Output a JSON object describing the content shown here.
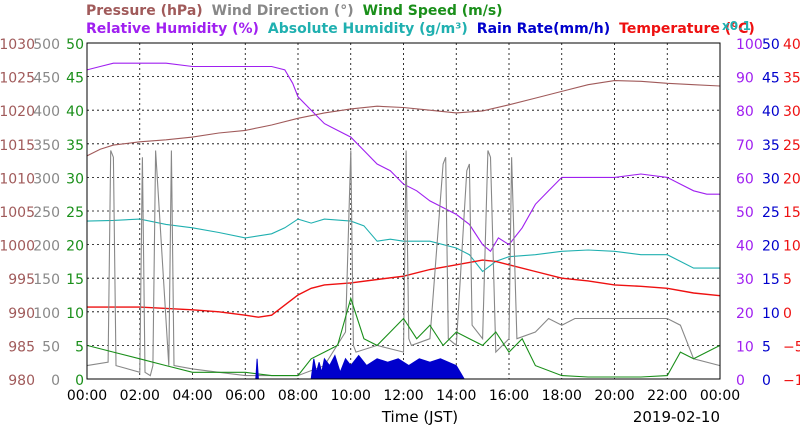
{
  "chart_data": {
    "type": "line",
    "title_items": [
      {
        "text": "Pressure (hPa)",
        "color": "#a05a5a"
      },
      {
        "text": "Wind Direction (°)",
        "color": "#888888"
      },
      {
        "text": "Wind Speed (m/s)",
        "color": "#1a8f1a"
      }
    ],
    "title_items_2": [
      {
        "text": "Relative Humidity (%)",
        "color": "#a020f0"
      },
      {
        "text": "Absolute Humidity (g/m³)",
        "color": "#20b0b0"
      },
      {
        "text": "Rain Rate(mm/h)",
        "color": "#0000cc"
      },
      {
        "text": "Temperature (°C)",
        "color": "#ee1111"
      }
    ],
    "rain_multiplier": "x0.1",
    "xlabel": "Time (JST)",
    "date": "2019-02-10",
    "x_ticks": [
      "00:00",
      "02:00",
      "04:00",
      "06:00",
      "08:00",
      "10:00",
      "12:00",
      "14:00",
      "16:00",
      "18:00",
      "20:00",
      "22:00",
      "00:00"
    ],
    "axes": {
      "pressure": {
        "color": "#a05a5a",
        "ticks": [
          "980",
          "985",
          "990",
          "995",
          "1000",
          "1005",
          "1010",
          "1015",
          "1020",
          "1025",
          "1030"
        ],
        "ylim": [
          980,
          1030
        ]
      },
      "wind_direction": {
        "color": "#888888",
        "ticks": [
          "0",
          "50",
          "100",
          "150",
          "200",
          "250",
          "300",
          "350",
          "400",
          "450",
          "500"
        ],
        "ylim": [
          0,
          500
        ]
      },
      "wind_speed": {
        "color": "#1a8f1a",
        "ticks": [
          "0",
          "5",
          "10",
          "15",
          "20",
          "25",
          "30",
          "35",
          "40",
          "45",
          "50"
        ],
        "ylim": [
          0,
          50
        ]
      },
      "humidity": {
        "color": "#a020f0",
        "ticks": [
          "0",
          "10",
          "20",
          "30",
          "40",
          "50",
          "60",
          "70",
          "80",
          "90",
          "100"
        ],
        "ylim": [
          0,
          100
        ]
      },
      "rain_rate": {
        "color": "#0000cc",
        "ticks": [
          "0",
          "5",
          "10",
          "15",
          "20",
          "25",
          "30",
          "35",
          "40",
          "45",
          "50"
        ],
        "ylim": [
          0,
          50
        ]
      },
      "temperature": {
        "color": "#ee1111",
        "ticks": [
          "−10",
          "−5",
          "0",
          "5",
          "10",
          "15",
          "20",
          "25",
          "30",
          "35",
          "40"
        ],
        "ylim": [
          -10,
          40
        ]
      }
    },
    "series": [
      {
        "name": "Pressure (hPa)",
        "axis": "pressure",
        "color": "#a05a5a",
        "x": [
          0,
          0.5,
          1,
          2,
          3,
          4,
          5,
          6,
          7,
          8,
          9,
          10,
          11,
          12,
          13,
          14,
          15,
          16,
          17,
          18,
          19,
          20,
          21,
          22,
          23,
          24
        ],
        "y": [
          1013.2,
          1014.2,
          1014.8,
          1015.3,
          1015.6,
          1016.0,
          1016.6,
          1017.0,
          1017.8,
          1018.8,
          1019.6,
          1020.2,
          1020.6,
          1020.4,
          1020.0,
          1019.6,
          1019.9,
          1020.8,
          1021.8,
          1022.8,
          1023.8,
          1024.4,
          1024.3,
          1024.0,
          1023.8,
          1023.6
        ]
      },
      {
        "name": "Relative Humidity (%)",
        "axis": "humidity",
        "color": "#a020f0",
        "x": [
          0,
          0.5,
          1,
          2,
          3,
          4,
          5,
          6,
          7,
          7.5,
          7.8,
          8,
          8.5,
          9,
          9.5,
          10,
          10.5,
          11,
          11.5,
          12,
          12.5,
          13,
          13.5,
          14,
          14.5,
          15,
          15.3,
          15.6,
          16,
          16.5,
          17,
          17.5,
          18,
          18.5,
          19,
          20,
          21,
          22,
          22.5,
          23,
          23.5,
          24
        ],
        "y": [
          92,
          93,
          94,
          94,
          94,
          93,
          93,
          93,
          93,
          92,
          88,
          84,
          80,
          76,
          74,
          72,
          68,
          64,
          62,
          58,
          56,
          53,
          51,
          49,
          46,
          40,
          38,
          42,
          40,
          45,
          52,
          56,
          60,
          60,
          60,
          60,
          61,
          60,
          58,
          56,
          55,
          55
        ]
      },
      {
        "name": "Absolute Humidity (g/m³)",
        "axis": "wind_speed",
        "color": "#20b0b0",
        "x": [
          0,
          1,
          2,
          3,
          4,
          5,
          6,
          7,
          7.5,
          8,
          8.5,
          9,
          10,
          10.5,
          11,
          11.5,
          12,
          13,
          14,
          14.5,
          15,
          15.5,
          16,
          17,
          18,
          19,
          20,
          21,
          22,
          22.5,
          23,
          24
        ],
        "y": [
          23.5,
          23.6,
          23.8,
          23.0,
          22.5,
          21.8,
          21.0,
          21.6,
          22.5,
          23.8,
          23.2,
          23.8,
          23.5,
          22.8,
          20.5,
          20.8,
          20.5,
          20.5,
          19.5,
          18.5,
          16.0,
          17.5,
          18.2,
          18.5,
          19.0,
          19.2,
          19.0,
          18.5,
          18.5,
          17.5,
          16.5,
          16.5
        ]
      },
      {
        "name": "Temperature (°C)",
        "axis": "temperature",
        "color": "#ee1111",
        "x": [
          0,
          1,
          2,
          3,
          4,
          5,
          6,
          6.5,
          7,
          7.5,
          8,
          8.5,
          9,
          10,
          11,
          12,
          13,
          14,
          15,
          15.5,
          16,
          17,
          18,
          19,
          20,
          21,
          22,
          23,
          24
        ],
        "y": [
          0.7,
          0.7,
          0.7,
          0.5,
          0.3,
          0.0,
          -0.5,
          -0.8,
          -0.5,
          1.0,
          2.5,
          3.5,
          4.0,
          4.3,
          4.8,
          5.3,
          6.3,
          7.0,
          7.7,
          7.5,
          7.0,
          6.0,
          5.0,
          4.6,
          4.0,
          3.8,
          3.5,
          2.8,
          2.4
        ]
      },
      {
        "name": "Wind Direction (°)",
        "axis": "wind_direction",
        "color": "#888888",
        "x": [
          0,
          0.8,
          0.9,
          1.0,
          1.1,
          2.0,
          2.1,
          2.2,
          2.4,
          2.5,
          2.6,
          3.1,
          3.2,
          3.3,
          4,
          5,
          6,
          7,
          8,
          9,
          9.8,
          10.0,
          10.1,
          10.2,
          11,
          12,
          12.1,
          12.2,
          12.3,
          13,
          13.5,
          13.6,
          13.7,
          14,
          14.4,
          14.5,
          14.6,
          15,
          15.2,
          15.3,
          15.5,
          16,
          16.1,
          16.3,
          17,
          17.5,
          18,
          18.5,
          19,
          20,
          21,
          22,
          22.5,
          23,
          24
        ],
        "y": [
          20,
          25,
          340,
          330,
          20,
          10,
          330,
          10,
          5,
          20,
          340,
          20,
          340,
          20,
          15,
          10,
          5,
          5,
          5,
          20,
          70,
          340,
          50,
          40,
          50,
          40,
          340,
          60,
          50,
          60,
          320,
          330,
          60,
          50,
          310,
          320,
          80,
          60,
          340,
          330,
          40,
          60,
          330,
          60,
          70,
          90,
          80,
          90,
          90,
          90,
          90,
          90,
          80,
          30,
          20
        ]
      },
      {
        "name": "Wind Speed (m/s)",
        "axis": "wind_speed",
        "color": "#1a8f1a",
        "x": [
          0,
          1,
          2,
          3,
          4,
          5,
          6,
          7,
          8,
          8.5,
          9,
          9.5,
          10,
          10.5,
          11,
          11.5,
          12,
          12.5,
          13,
          13.5,
          14,
          14.5,
          15,
          15.5,
          16,
          16.5,
          17,
          18,
          19,
          20,
          21,
          22,
          22.5,
          23,
          24
        ],
        "y": [
          5,
          4,
          3,
          2,
          1,
          1,
          1,
          0.5,
          0.5,
          3,
          4,
          5,
          12,
          6,
          5,
          7,
          9,
          6,
          8,
          5,
          7,
          6,
          5,
          7,
          4,
          6,
          2,
          0.5,
          0.3,
          0.3,
          0.3,
          0.5,
          4,
          3,
          5
        ]
      },
      {
        "name": "Rain Rate(mm/h)",
        "axis": "rain_rate",
        "color": "#0000cc",
        "x": [
          0,
          6.4,
          6.45,
          6.5,
          8.5,
          8.6,
          8.7,
          8.8,
          8.9,
          9.0,
          9.2,
          9.4,
          9.6,
          9.8,
          10.0,
          10.3,
          10.6,
          11.0,
          11.4,
          11.8,
          12.2,
          12.6,
          13.0,
          13.4,
          14.0,
          14.3,
          24
        ],
        "y": [
          0,
          0,
          3,
          0,
          0,
          3,
          1,
          2.5,
          1,
          3,
          2,
          3.5,
          1,
          3,
          2,
          3.5,
          2,
          3,
          2.5,
          3,
          2,
          3,
          2.5,
          3,
          2,
          0,
          0
        ]
      }
    ]
  }
}
